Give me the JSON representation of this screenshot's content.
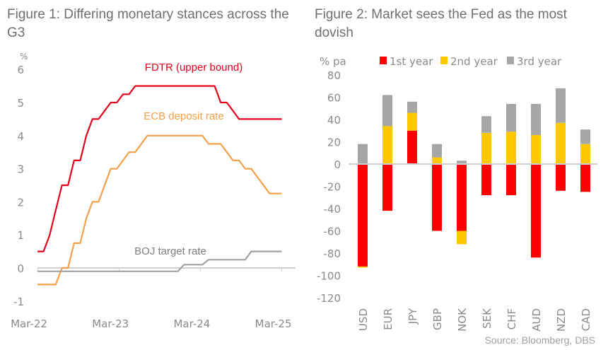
{
  "chart_data": [
    {
      "type": "line",
      "title": "Figure 1: Differing monetary stances across the G3",
      "ylabel": "%",
      "ylim": [
        -1,
        6
      ],
      "yticks": [
        "6",
        "5",
        "4",
        "3",
        "2",
        "1",
        "0",
        "-1"
      ],
      "xticks": [
        "Mar-22",
        "Mar-23",
        "Mar-24",
        "Mar-25"
      ],
      "x_start": "Mar-22",
      "x_step": "month",
      "series": [
        {
          "name": "FDTR (upper bound)",
          "color": "#e3001b",
          "values": [
            0.5,
            0.5,
            1.0,
            1.75,
            2.5,
            2.5,
            3.25,
            3.25,
            4.0,
            4.5,
            4.5,
            4.75,
            5.0,
            5.0,
            5.25,
            5.25,
            5.5,
            5.5,
            5.5,
            5.5,
            5.5,
            5.5,
            5.5,
            5.5,
            5.5,
            5.5,
            5.5,
            5.5,
            5.5,
            5.5,
            5.0,
            5.0,
            4.75,
            4.5,
            4.5,
            4.5,
            4.5,
            4.5,
            4.5,
            4.5,
            4.5
          ]
        },
        {
          "name": "ECB deposit rate",
          "color": "#f4a04a",
          "values": [
            -0.5,
            -0.5,
            -0.5,
            -0.5,
            0.0,
            0.0,
            0.75,
            0.75,
            1.5,
            2.0,
            2.0,
            2.5,
            3.0,
            3.0,
            3.25,
            3.5,
            3.5,
            3.75,
            4.0,
            4.0,
            4.0,
            4.0,
            4.0,
            4.0,
            4.0,
            4.0,
            4.0,
            4.0,
            3.75,
            3.75,
            3.75,
            3.5,
            3.25,
            3.25,
            3.0,
            3.0,
            2.75,
            2.5,
            2.25,
            2.25,
            2.25
          ]
        },
        {
          "name": "BOJ target rate",
          "color": "#a0a0a0",
          "values": [
            -0.1,
            -0.1,
            -0.1,
            -0.1,
            -0.1,
            -0.1,
            -0.1,
            -0.1,
            -0.1,
            -0.1,
            -0.1,
            -0.1,
            -0.1,
            -0.1,
            -0.1,
            -0.1,
            -0.1,
            -0.1,
            -0.1,
            -0.1,
            -0.1,
            -0.1,
            -0.1,
            -0.1,
            0.1,
            0.1,
            0.1,
            0.1,
            0.25,
            0.25,
            0.25,
            0.25,
            0.25,
            0.25,
            0.25,
            0.5,
            0.5,
            0.5,
            0.5,
            0.5,
            0.5
          ]
        }
      ],
      "annotations": [
        "FDTR (upper bound)",
        "ECB deposit rate",
        "BOJ target rate"
      ]
    },
    {
      "type": "bar",
      "stacked": true,
      "title": "Figure 2: Market sees the Fed as the most dovish",
      "ylabel": "% pa",
      "ylim": [
        -120,
        80
      ],
      "yticks": [
        "80",
        "60",
        "40",
        "20",
        "0",
        "-20",
        "-40",
        "-60",
        "-80",
        "-100",
        "-120"
      ],
      "categories": [
        "USD",
        "EUR",
        "JPY",
        "GBP",
        "NOK",
        "SEK",
        "CHF",
        "AUD",
        "NZD",
        "CAD"
      ],
      "legend_position": "top",
      "series": [
        {
          "name": "1st year",
          "color": "#ff0000",
          "values": [
            -92,
            -42,
            30,
            -60,
            -60,
            -28,
            -28,
            -84,
            -24,
            -25
          ]
        },
        {
          "name": "2nd year",
          "color": "#ffc800",
          "values": [
            -1,
            34,
            16,
            6,
            -12,
            28,
            29,
            26,
            37,
            18
          ]
        },
        {
          "name": "3rd year",
          "color": "#a6a6a6",
          "values": [
            18,
            28,
            10,
            12,
            3,
            15,
            25,
            28,
            31,
            13
          ]
        }
      ]
    }
  ],
  "source": "Source: Bloomberg, DBS"
}
